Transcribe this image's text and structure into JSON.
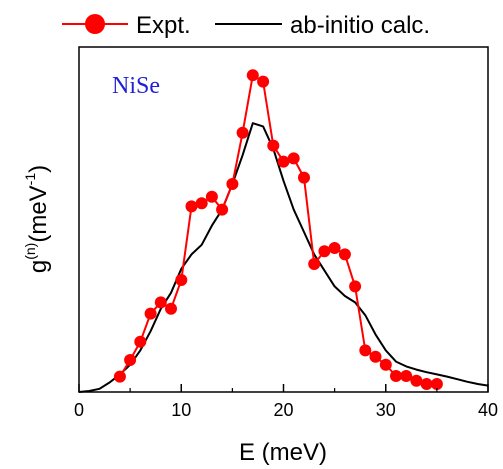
{
  "chart_data": {
    "type": "line",
    "title": "",
    "xlabel": "E (meV)",
    "ylabel_main": "g",
    "ylabel_sup": "(n)",
    "ylabel_unit": "(meV",
    "ylabel_unit_sup": "-1",
    "ylabel_close": ")",
    "xlim": [
      0,
      40
    ],
    "ylim": [
      0,
      1
    ],
    "xticks": [
      0,
      10,
      20,
      30,
      40
    ],
    "yticks_shown": false,
    "grid": false,
    "legend_position": "top",
    "annotation": {
      "text": "NiSe",
      "color": "#1f1fd6"
    },
    "series": [
      {
        "name": "Expt.",
        "color": "#ff0000",
        "style": "line+markers",
        "x": [
          4,
          5,
          6,
          7,
          8,
          9,
          10,
          11,
          12,
          13,
          14,
          15,
          16,
          17,
          18,
          19,
          20,
          21,
          22,
          23,
          24,
          25,
          26,
          27,
          28,
          29,
          30,
          31,
          32,
          33,
          34,
          35
        ],
        "y": [
          0.048,
          0.1,
          0.157,
          0.245,
          0.28,
          0.26,
          0.35,
          0.58,
          0.59,
          0.61,
          0.57,
          0.65,
          0.81,
          0.99,
          0.97,
          0.77,
          0.72,
          0.73,
          0.67,
          0.4,
          0.44,
          0.45,
          0.43,
          0.33,
          0.13,
          0.11,
          0.085,
          0.05,
          0.05,
          0.035,
          0.025,
          0.025
        ]
      },
      {
        "name": "ab-initio calc.",
        "color": "#000000",
        "style": "line",
        "x": [
          0,
          1,
          2,
          3,
          4,
          5,
          6,
          7,
          8,
          9,
          10,
          11,
          12,
          13,
          14,
          15,
          16,
          17,
          18,
          19,
          20,
          21,
          22,
          23,
          24,
          25,
          26,
          27,
          28,
          29,
          30,
          31,
          32,
          33,
          34,
          35,
          36,
          37,
          38,
          39,
          40
        ],
        "y": [
          0,
          0.003,
          0.01,
          0.03,
          0.055,
          0.085,
          0.13,
          0.19,
          0.26,
          0.31,
          0.385,
          0.43,
          0.46,
          0.52,
          0.57,
          0.65,
          0.74,
          0.84,
          0.83,
          0.76,
          0.66,
          0.57,
          0.5,
          0.43,
          0.38,
          0.33,
          0.3,
          0.28,
          0.24,
          0.18,
          0.13,
          0.095,
          0.08,
          0.07,
          0.062,
          0.055,
          0.048,
          0.04,
          0.032,
          0.025,
          0.02
        ]
      }
    ]
  }
}
